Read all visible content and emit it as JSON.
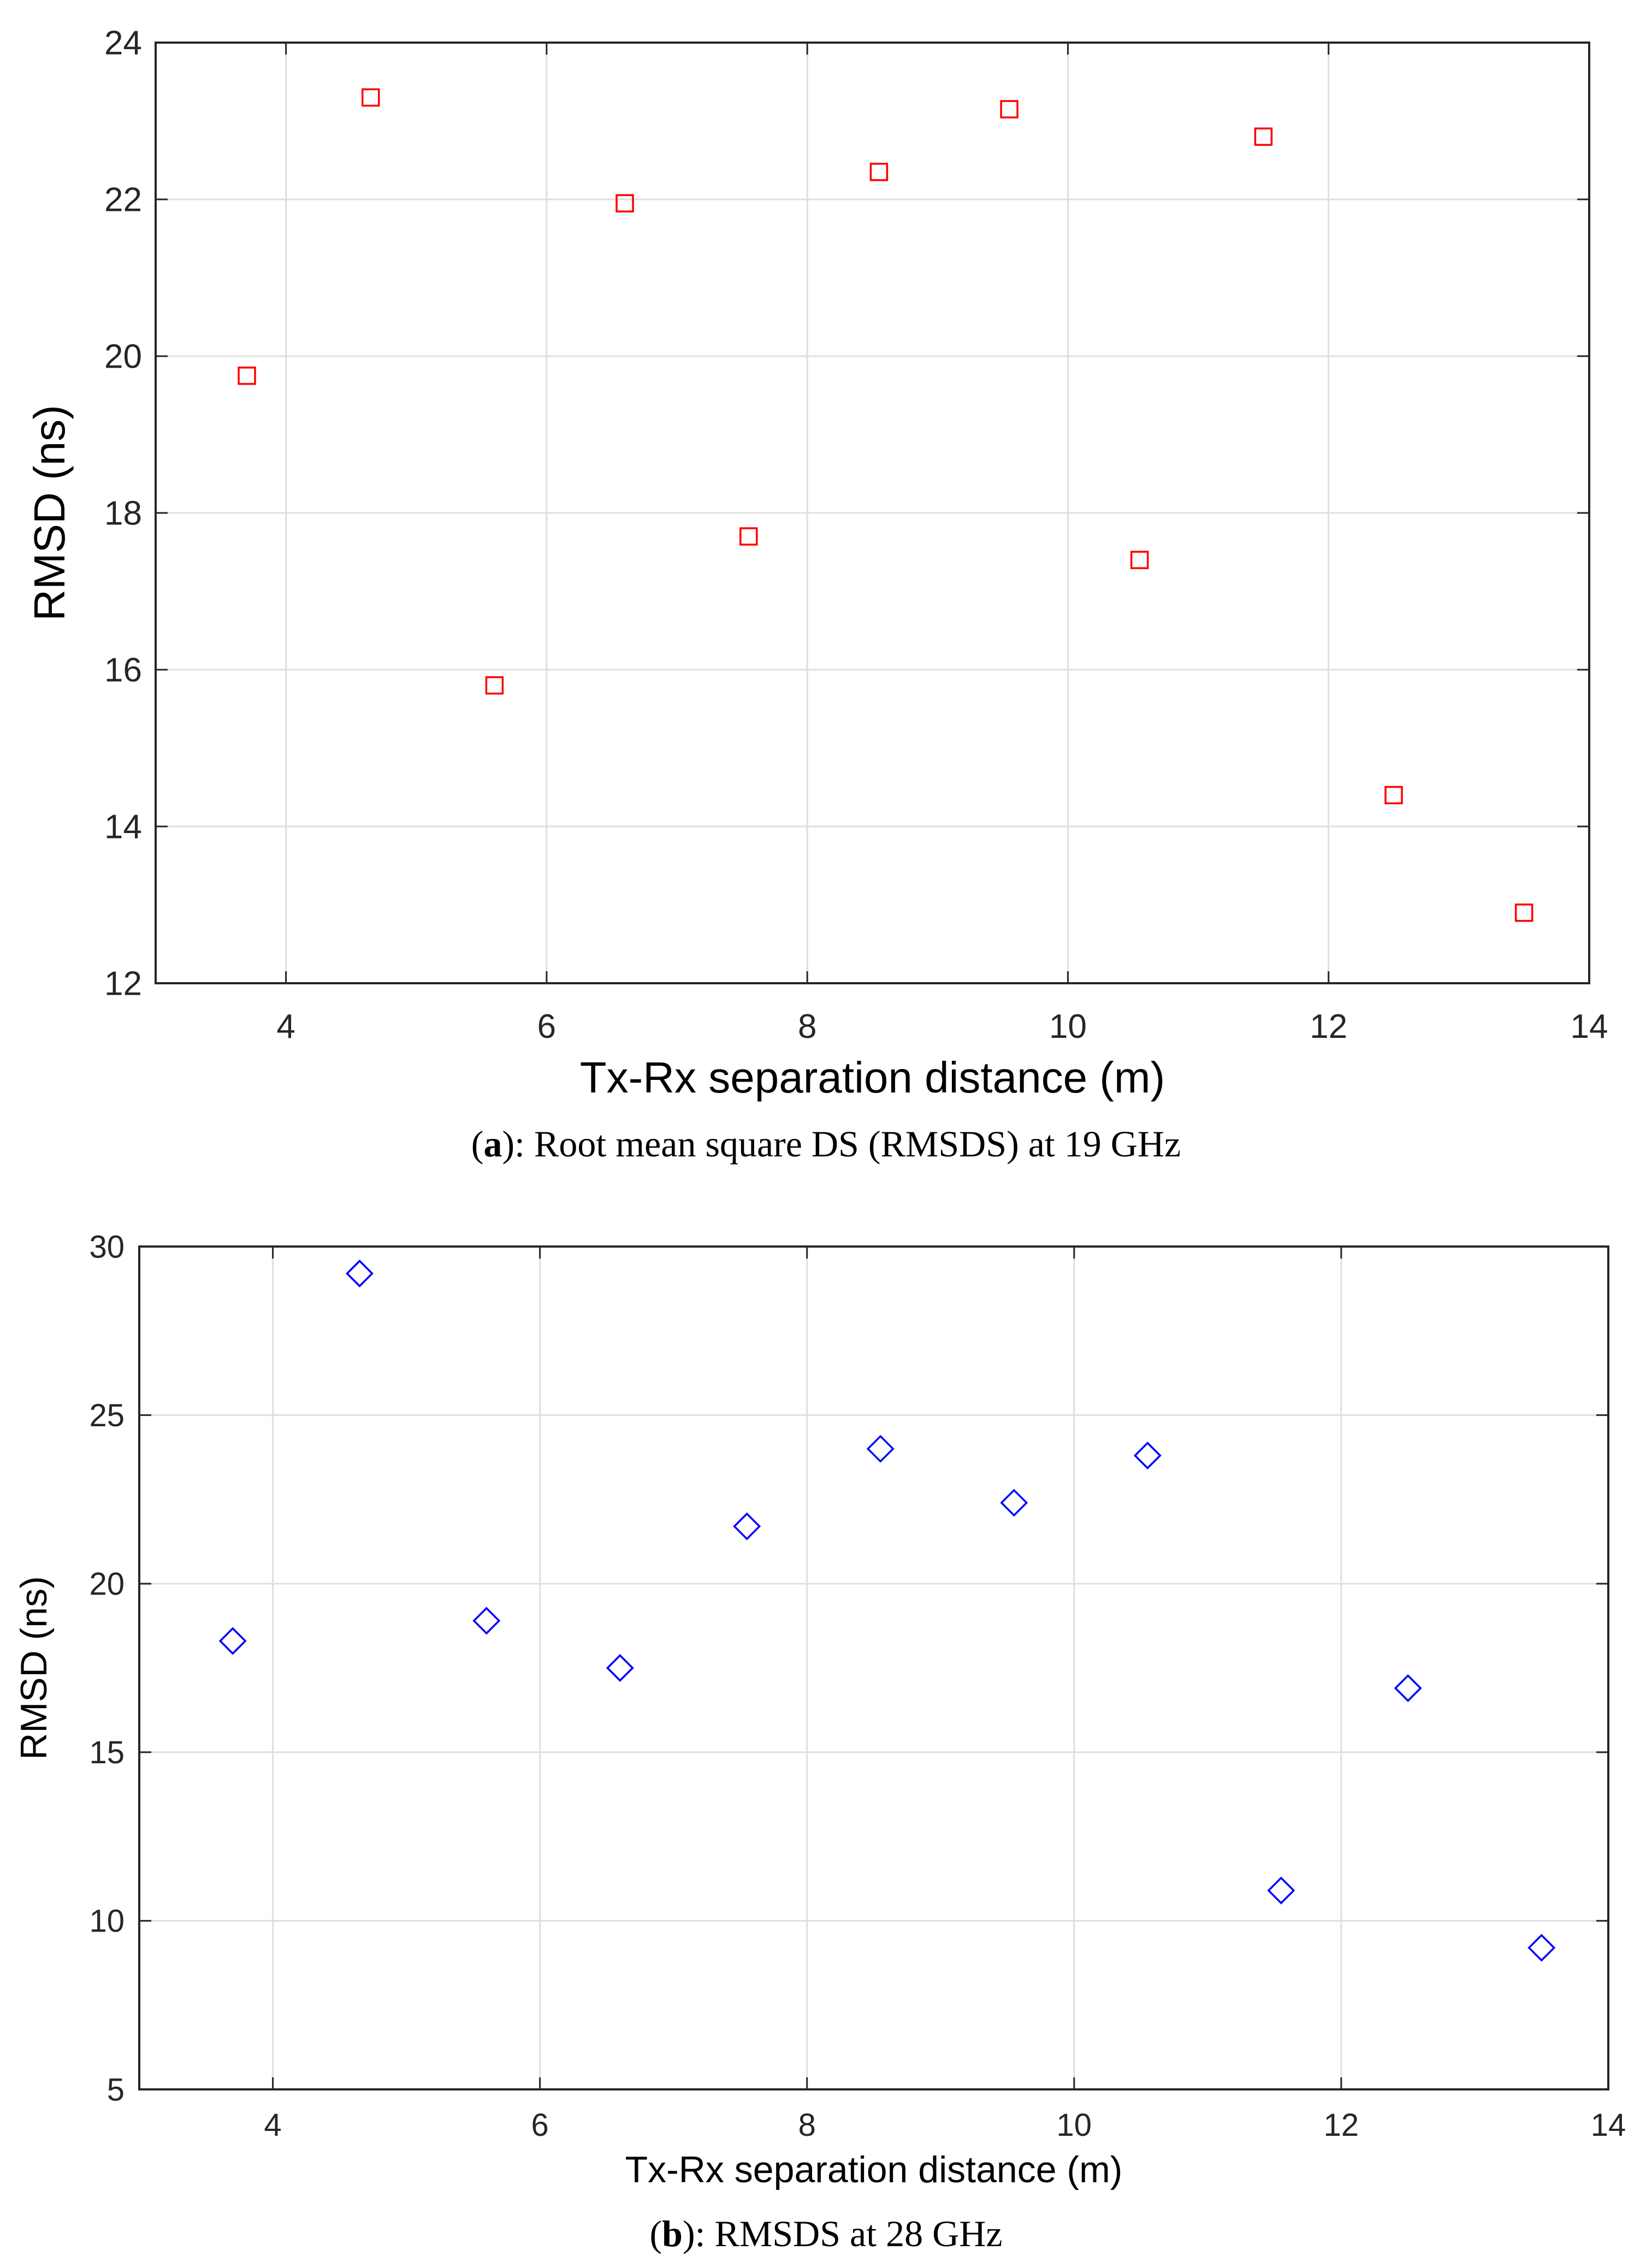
{
  "chart_data": [
    {
      "type": "scatter",
      "marker": "square",
      "color": "#ff0000",
      "x": [
        3.7,
        4.65,
        5.6,
        6.6,
        7.55,
        8.55,
        9.55,
        10.55,
        11.5,
        12.5,
        13.5
      ],
      "y": [
        19.75,
        23.3,
        15.8,
        21.95,
        17.7,
        22.35,
        23.15,
        17.4,
        22.8,
        14.4,
        12.9
      ],
      "xlabel": "Tx-Rx separation distance (m)",
      "ylabel": "RMSD (ns)",
      "xlim": [
        3,
        14
      ],
      "ylim": [
        12,
        24
      ],
      "xticks": [
        "4",
        "6",
        "8",
        "10",
        "12",
        "14"
      ],
      "yticks": [
        "12",
        "14",
        "16",
        "18",
        "20",
        "22",
        "24"
      ],
      "grid": true,
      "caption": {
        "open": "(",
        "letter": "a",
        "rest": "): Root mean square DS (RMSDS) at 19 GHz"
      }
    },
    {
      "type": "scatter",
      "marker": "diamond",
      "color": "#0000ff",
      "x": [
        3.7,
        4.65,
        5.6,
        6.6,
        7.55,
        8.55,
        9.55,
        10.55,
        11.55,
        12.5,
        13.5
      ],
      "y": [
        18.3,
        29.2,
        18.9,
        17.5,
        21.7,
        24.0,
        22.4,
        23.8,
        10.9,
        16.9,
        9.2
      ],
      "xlabel": "Tx-Rx separation distance (m)",
      "ylabel": "RMSD (ns)",
      "xlim": [
        3,
        14
      ],
      "ylim": [
        5,
        30
      ],
      "xticks": [
        "4",
        "6",
        "8",
        "10",
        "12",
        "14"
      ],
      "yticks": [
        "5",
        "10",
        "15",
        "20",
        "25",
        "30"
      ],
      "grid": true,
      "caption": {
        "open": "(",
        "letter": "b",
        "rest": "): RMSDS at 28 GHz"
      }
    }
  ]
}
